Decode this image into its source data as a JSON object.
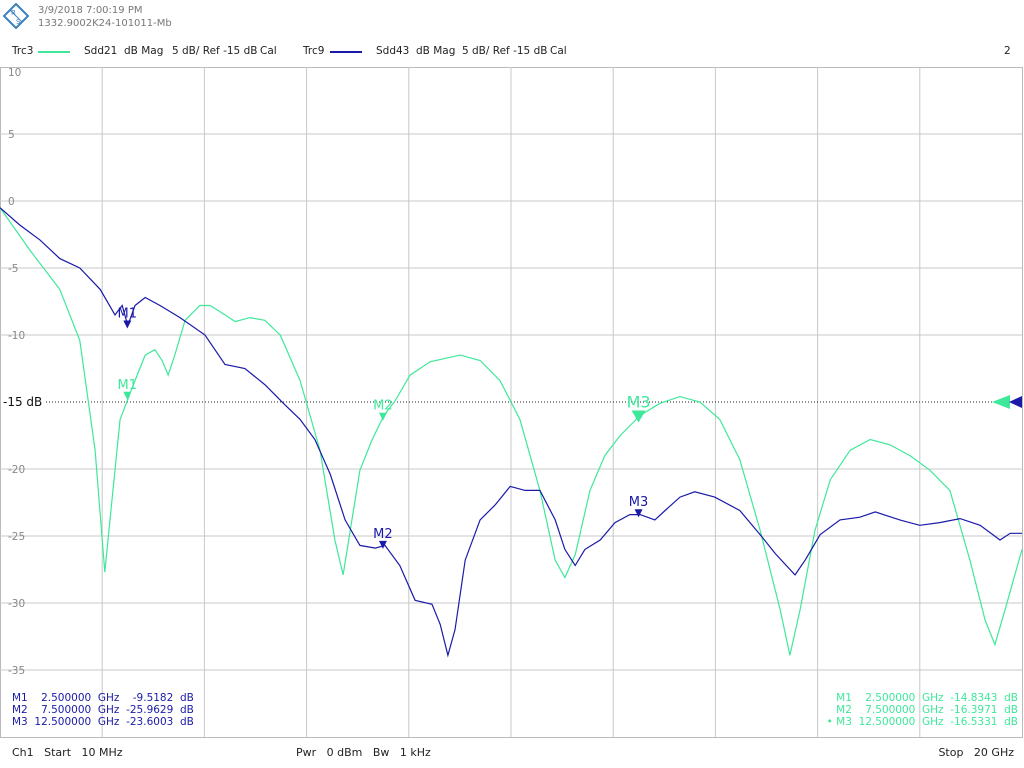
{
  "header": {
    "logo_text": "R&S",
    "datetime": "3/9/2018 7:00:19 PM",
    "device_id": "1332.9002K24-101011-Mb",
    "window_number": "2"
  },
  "traces": [
    {
      "name": "Trc3",
      "param": "Sdd21",
      "format": "dB Mag",
      "scale": "5 dB/ Ref -15 dB",
      "cal": "Cal",
      "color": "#3ee89a"
    },
    {
      "name": "Trc9",
      "param": "Sdd43",
      "format": "dB Mag",
      "scale": "5 dB/ Ref -15 dB",
      "cal": "Cal",
      "color": "#1a1aa8"
    }
  ],
  "footer": {
    "start": "Ch1   Start   10 MHz",
    "power": "Pwr   0 dBm   Bw   1 kHz",
    "stop": "Stop   20 GHz"
  },
  "marker_tables": {
    "trc9": [
      {
        "text": "M1    2.500000  GHz    -9.5182  dB"
      },
      {
        "text": "M2    7.500000  GHz  -25.9629  dB"
      },
      {
        "text": "M3  12.500000  GHz  -23.6003  dB"
      }
    ],
    "trc3": [
      {
        "text": "M1    2.500000  GHz  -14.8343  dB"
      },
      {
        "text": "M2    7.500000  GHz  -16.3971  dB"
      },
      {
        "text": "• M3  12.500000  GHz  -16.5331  dB"
      }
    ]
  },
  "chart_data": {
    "type": "line",
    "xlim": [
      0.01,
      20
    ],
    "x_unit": "GHz",
    "ylim": [
      -40,
      10
    ],
    "ytick_labels": [
      "10",
      "5",
      "0",
      "-5",
      "-10",
      "-15 dB",
      "-20",
      "-25",
      "-30",
      "-35"
    ],
    "yticks": [
      10,
      5,
      0,
      -5,
      -10,
      -15,
      -20,
      -25,
      -30,
      -35
    ],
    "reference_level": -15,
    "grid": true,
    "series": [
      {
        "name": "Sdd21",
        "color": "#3ee89a",
        "x": [
          0.01,
          0.6,
          1.18,
          1.57,
          1.87,
          2.06,
          2.2,
          2.36,
          2.51,
          2.65,
          2.85,
          3.04,
          3.18,
          3.3,
          3.43,
          3.63,
          3.92,
          4.12,
          4.41,
          4.61,
          4.9,
          5.19,
          5.49,
          5.88,
          6.27,
          6.56,
          6.72,
          6.86,
          7.05,
          7.29,
          7.52,
          7.74,
          8.03,
          8.42,
          9.01,
          9.4,
          9.79,
          10.18,
          10.57,
          10.87,
          11.06,
          11.26,
          11.55,
          11.84,
          12.14,
          12.53,
          12.92,
          13.31,
          13.7,
          14.09,
          14.48,
          14.88,
          15.27,
          15.46,
          15.66,
          15.95,
          16.25,
          16.64,
          17.03,
          17.42,
          17.81,
          18.2,
          18.59,
          18.98,
          19.28,
          19.47,
          19.67,
          20.0
        ],
        "y": [
          -0.5,
          -3.7,
          -6.6,
          -10.4,
          -18.6,
          -27.7,
          -22.3,
          -16.3,
          -14.8,
          -13.4,
          -11.5,
          -11.1,
          -11.9,
          -13.0,
          -11.5,
          -8.9,
          -7.8,
          -7.8,
          -8.5,
          -9.0,
          -8.7,
          -8.9,
          -10.0,
          -13.4,
          -18.6,
          -25.3,
          -27.9,
          -24.6,
          -20.1,
          -17.8,
          -16.0,
          -14.9,
          -13.0,
          -12.0,
          -11.5,
          -11.9,
          -13.4,
          -16.3,
          -21.6,
          -26.8,
          -28.1,
          -26.4,
          -21.6,
          -19.0,
          -17.5,
          -16.0,
          -15.1,
          -14.6,
          -15.0,
          -16.3,
          -19.3,
          -24.6,
          -30.5,
          -33.9,
          -30.5,
          -24.6,
          -20.8,
          -18.6,
          -17.8,
          -18.2,
          -19.0,
          -20.1,
          -21.6,
          -26.8,
          -31.3,
          -33.1,
          -30.5,
          -26.0
        ],
        "markers": [
          {
            "label": "M1",
            "x": 2.5,
            "y": -14.8343
          },
          {
            "label": "M2",
            "x": 7.5,
            "y": -16.3971
          },
          {
            "label": "M3",
            "x": 12.5,
            "y": -16.5331,
            "active": true
          }
        ]
      },
      {
        "name": "Sdd43",
        "color": "#1a1aa8",
        "x": [
          0.01,
          0.4,
          0.79,
          1.18,
          1.57,
          1.97,
          2.26,
          2.4,
          2.51,
          2.65,
          2.85,
          3.14,
          3.53,
          4.02,
          4.41,
          4.8,
          5.19,
          5.58,
          5.88,
          6.17,
          6.47,
          6.76,
          7.05,
          7.35,
          7.54,
          7.83,
          8.13,
          8.46,
          8.62,
          8.77,
          8.91,
          9.11,
          9.4,
          9.69,
          9.99,
          10.28,
          10.57,
          10.87,
          11.06,
          11.26,
          11.45,
          11.75,
          12.04,
          12.33,
          12.53,
          12.82,
          13.02,
          13.31,
          13.6,
          13.99,
          14.48,
          14.88,
          15.17,
          15.56,
          15.76,
          16.05,
          16.44,
          16.83,
          17.13,
          17.61,
          18.0,
          18.39,
          18.79,
          19.18,
          19.57,
          19.77,
          20.0
        ],
        "y": [
          -0.5,
          -1.8,
          -2.9,
          -4.3,
          -5.0,
          -6.6,
          -8.5,
          -7.8,
          -9.3,
          -7.8,
          -7.2,
          -7.8,
          -8.7,
          -10.0,
          -12.2,
          -12.5,
          -13.7,
          -15.2,
          -16.3,
          -17.8,
          -20.4,
          -23.8,
          -25.7,
          -25.9,
          -25.7,
          -27.2,
          -29.8,
          -30.1,
          -31.6,
          -33.9,
          -32.0,
          -26.8,
          -23.8,
          -22.7,
          -21.3,
          -21.6,
          -21.6,
          -23.8,
          -26.0,
          -27.2,
          -26.0,
          -25.3,
          -24.0,
          -23.4,
          -23.4,
          -23.8,
          -23.1,
          -22.1,
          -21.7,
          -22.1,
          -23.1,
          -24.9,
          -26.3,
          -27.9,
          -26.8,
          -24.9,
          -23.8,
          -23.6,
          -23.2,
          -23.8,
          -24.2,
          -24.0,
          -23.7,
          -24.2,
          -25.3,
          -24.8,
          -24.8
        ],
        "markers": [
          {
            "label": "M1",
            "x": 2.5,
            "y": -9.5182
          },
          {
            "label": "M2",
            "x": 7.5,
            "y": -25.9629
          },
          {
            "label": "M3",
            "x": 12.5,
            "y": -23.6003
          }
        ]
      }
    ]
  }
}
